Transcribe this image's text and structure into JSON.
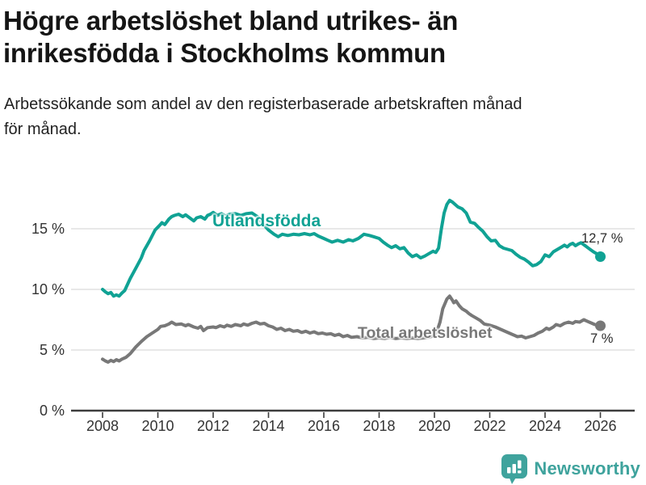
{
  "header": {
    "title_lines": [
      "Högre arbetslöshet bland utrikes- än",
      "inrikesfödda i Stockholms kommun"
    ],
    "subtitle_lines": [
      "Arbetssökande som andel av den registerbaserade arbetskraften månad",
      "för månad."
    ]
  },
  "chart_data": {
    "type": "line",
    "title": "Högre arbetslöshet bland utrikes- än inrikesfödda i Stockholms kommun",
    "subtitle": "Arbetssökande som andel av den registerbaserade arbetskraften månad för månad.",
    "xlabel": "",
    "ylabel": "",
    "grid": "horizontal",
    "grid_color": "#d9d9d9",
    "axis_color": "#3d3d3d",
    "tick_label_color": "#333333",
    "xlim": [
      2007.9,
      2026.6
    ],
    "ylim": [
      0,
      18
    ],
    "x_ticks": [
      "2008",
      "2010",
      "2012",
      "2014",
      "2016",
      "2018",
      "2020",
      "2022",
      "2024",
      "2026"
    ],
    "x_tick_values": [
      2008,
      2010,
      2012,
      2014,
      2016,
      2018,
      2020,
      2022,
      2024,
      2026
    ],
    "y_ticks": [
      {
        "label": "0 %",
        "value": 0
      },
      {
        "label": "5 %",
        "value": 5
      },
      {
        "label": "10 %",
        "value": 10
      },
      {
        "label": "15 %",
        "value": 15
      }
    ],
    "series": [
      {
        "id": "utlandsfodda",
        "name": "Utlandsfödda",
        "color": "#10a294",
        "end_label": "12,7 %",
        "end_value": 12.7,
        "points": [
          [
            2008.0,
            10.0
          ],
          [
            2008.1,
            9.8
          ],
          [
            2008.2,
            9.65
          ],
          [
            2008.3,
            9.75
          ],
          [
            2008.4,
            9.45
          ],
          [
            2008.5,
            9.55
          ],
          [
            2008.6,
            9.45
          ],
          [
            2008.7,
            9.7
          ],
          [
            2008.8,
            9.9
          ],
          [
            2009.0,
            10.9
          ],
          [
            2009.25,
            11.95
          ],
          [
            2009.4,
            12.6
          ],
          [
            2009.5,
            13.2
          ],
          [
            2009.7,
            14.0
          ],
          [
            2009.9,
            14.9
          ],
          [
            2010.05,
            15.25
          ],
          [
            2010.15,
            15.5
          ],
          [
            2010.25,
            15.35
          ],
          [
            2010.4,
            15.8
          ],
          [
            2010.5,
            16.0
          ],
          [
            2010.6,
            16.1
          ],
          [
            2010.75,
            16.2
          ],
          [
            2010.9,
            16.0
          ],
          [
            2011.0,
            16.15
          ],
          [
            2011.15,
            15.9
          ],
          [
            2011.3,
            15.65
          ],
          [
            2011.4,
            15.9
          ],
          [
            2011.55,
            16.0
          ],
          [
            2011.7,
            15.8
          ],
          [
            2011.8,
            16.1
          ],
          [
            2011.9,
            16.2
          ],
          [
            2012.0,
            16.35
          ],
          [
            2012.15,
            16.1
          ],
          [
            2012.3,
            16.25
          ],
          [
            2012.45,
            16.05
          ],
          [
            2012.6,
            16.2
          ],
          [
            2012.8,
            16.25
          ],
          [
            2013.0,
            16.1
          ],
          [
            2013.2,
            16.25
          ],
          [
            2013.4,
            16.3
          ],
          [
            2013.6,
            16.0
          ],
          [
            2013.8,
            15.4
          ],
          [
            2014.0,
            14.9
          ],
          [
            2014.2,
            14.55
          ],
          [
            2014.35,
            14.35
          ],
          [
            2014.5,
            14.55
          ],
          [
            2014.7,
            14.45
          ],
          [
            2014.9,
            14.55
          ],
          [
            2015.1,
            14.5
          ],
          [
            2015.3,
            14.6
          ],
          [
            2015.5,
            14.5
          ],
          [
            2015.65,
            14.6
          ],
          [
            2015.8,
            14.4
          ],
          [
            2016.0,
            14.2
          ],
          [
            2016.15,
            14.05
          ],
          [
            2016.3,
            13.9
          ],
          [
            2016.5,
            14.05
          ],
          [
            2016.7,
            13.9
          ],
          [
            2016.9,
            14.1
          ],
          [
            2017.05,
            14.0
          ],
          [
            2017.25,
            14.2
          ],
          [
            2017.45,
            14.55
          ],
          [
            2017.65,
            14.45
          ],
          [
            2017.8,
            14.35
          ],
          [
            2018.0,
            14.2
          ],
          [
            2018.15,
            13.9
          ],
          [
            2018.3,
            13.65
          ],
          [
            2018.45,
            13.45
          ],
          [
            2018.6,
            13.6
          ],
          [
            2018.75,
            13.35
          ],
          [
            2018.9,
            13.45
          ],
          [
            2019.05,
            13.0
          ],
          [
            2019.2,
            12.7
          ],
          [
            2019.35,
            12.85
          ],
          [
            2019.5,
            12.6
          ],
          [
            2019.65,
            12.75
          ],
          [
            2019.8,
            12.95
          ],
          [
            2019.95,
            13.15
          ],
          [
            2020.05,
            13.05
          ],
          [
            2020.15,
            13.4
          ],
          [
            2020.25,
            15.0
          ],
          [
            2020.35,
            16.3
          ],
          [
            2020.45,
            17.0
          ],
          [
            2020.55,
            17.35
          ],
          [
            2020.65,
            17.2
          ],
          [
            2020.75,
            17.0
          ],
          [
            2020.85,
            16.8
          ],
          [
            2021.0,
            16.65
          ],
          [
            2021.15,
            16.3
          ],
          [
            2021.3,
            15.55
          ],
          [
            2021.45,
            15.45
          ],
          [
            2021.6,
            15.1
          ],
          [
            2021.75,
            14.8
          ],
          [
            2021.9,
            14.35
          ],
          [
            2022.05,
            14.0
          ],
          [
            2022.2,
            14.05
          ],
          [
            2022.35,
            13.6
          ],
          [
            2022.5,
            13.4
          ],
          [
            2022.65,
            13.3
          ],
          [
            2022.8,
            13.2
          ],
          [
            2022.95,
            12.9
          ],
          [
            2023.1,
            12.65
          ],
          [
            2023.25,
            12.5
          ],
          [
            2023.4,
            12.25
          ],
          [
            2023.55,
            11.95
          ],
          [
            2023.7,
            12.05
          ],
          [
            2023.85,
            12.3
          ],
          [
            2024.0,
            12.85
          ],
          [
            2024.15,
            12.7
          ],
          [
            2024.3,
            13.1
          ],
          [
            2024.45,
            13.3
          ],
          [
            2024.6,
            13.5
          ],
          [
            2024.7,
            13.65
          ],
          [
            2024.8,
            13.5
          ],
          [
            2024.9,
            13.7
          ],
          [
            2025.0,
            13.8
          ],
          [
            2025.1,
            13.6
          ],
          [
            2025.2,
            13.75
          ],
          [
            2025.3,
            13.85
          ],
          [
            2025.45,
            13.6
          ],
          [
            2025.6,
            13.35
          ],
          [
            2025.75,
            13.1
          ],
          [
            2025.9,
            12.9
          ],
          [
            2026.0,
            12.7
          ]
        ]
      },
      {
        "id": "total",
        "name": "Total arbetslöshet",
        "color": "#787878",
        "end_label": "7 %",
        "end_value": 7.0,
        "points": [
          [
            2008.0,
            4.25
          ],
          [
            2008.1,
            4.1
          ],
          [
            2008.2,
            4.0
          ],
          [
            2008.3,
            4.15
          ],
          [
            2008.4,
            4.05
          ],
          [
            2008.5,
            4.2
          ],
          [
            2008.6,
            4.1
          ],
          [
            2008.7,
            4.25
          ],
          [
            2008.85,
            4.4
          ],
          [
            2009.0,
            4.7
          ],
          [
            2009.2,
            5.25
          ],
          [
            2009.4,
            5.7
          ],
          [
            2009.6,
            6.1
          ],
          [
            2009.8,
            6.4
          ],
          [
            2010.0,
            6.7
          ],
          [
            2010.1,
            6.95
          ],
          [
            2010.25,
            7.0
          ],
          [
            2010.4,
            7.15
          ],
          [
            2010.5,
            7.3
          ],
          [
            2010.65,
            7.1
          ],
          [
            2010.85,
            7.15
          ],
          [
            2011.0,
            7.0
          ],
          [
            2011.1,
            7.1
          ],
          [
            2011.3,
            6.9
          ],
          [
            2011.45,
            6.8
          ],
          [
            2011.55,
            6.95
          ],
          [
            2011.65,
            6.6
          ],
          [
            2011.8,
            6.85
          ],
          [
            2012.0,
            6.9
          ],
          [
            2012.1,
            6.85
          ],
          [
            2012.25,
            7.0
          ],
          [
            2012.4,
            6.9
          ],
          [
            2012.5,
            7.05
          ],
          [
            2012.65,
            6.95
          ],
          [
            2012.8,
            7.1
          ],
          [
            2013.0,
            7.0
          ],
          [
            2013.1,
            7.15
          ],
          [
            2013.25,
            7.05
          ],
          [
            2013.4,
            7.2
          ],
          [
            2013.55,
            7.3
          ],
          [
            2013.7,
            7.15
          ],
          [
            2013.85,
            7.2
          ],
          [
            2014.0,
            7.0
          ],
          [
            2014.15,
            6.9
          ],
          [
            2014.3,
            6.7
          ],
          [
            2014.45,
            6.8
          ],
          [
            2014.6,
            6.6
          ],
          [
            2014.75,
            6.7
          ],
          [
            2014.9,
            6.55
          ],
          [
            2015.05,
            6.6
          ],
          [
            2015.2,
            6.45
          ],
          [
            2015.35,
            6.55
          ],
          [
            2015.5,
            6.4
          ],
          [
            2015.65,
            6.5
          ],
          [
            2015.8,
            6.35
          ],
          [
            2015.95,
            6.4
          ],
          [
            2016.1,
            6.3
          ],
          [
            2016.25,
            6.35
          ],
          [
            2016.4,
            6.2
          ],
          [
            2016.55,
            6.3
          ],
          [
            2016.7,
            6.1
          ],
          [
            2016.85,
            6.2
          ],
          [
            2017.0,
            6.05
          ],
          [
            2017.2,
            6.1
          ],
          [
            2017.4,
            6.0
          ],
          [
            2017.6,
            6.05
          ],
          [
            2017.8,
            5.95
          ],
          [
            2018.0,
            6.0
          ],
          [
            2018.2,
            5.95
          ],
          [
            2018.4,
            6.05
          ],
          [
            2018.6,
            5.95
          ],
          [
            2018.8,
            6.0
          ],
          [
            2019.0,
            5.95
          ],
          [
            2019.2,
            6.0
          ],
          [
            2019.4,
            5.95
          ],
          [
            2019.6,
            6.0
          ],
          [
            2019.8,
            6.05
          ],
          [
            2020.0,
            6.2
          ],
          [
            2020.1,
            6.6
          ],
          [
            2020.2,
            7.3
          ],
          [
            2020.3,
            8.4
          ],
          [
            2020.45,
            9.2
          ],
          [
            2020.55,
            9.45
          ],
          [
            2020.65,
            9.1
          ],
          [
            2020.7,
            8.9
          ],
          [
            2020.78,
            9.05
          ],
          [
            2020.9,
            8.65
          ],
          [
            2021.0,
            8.4
          ],
          [
            2021.15,
            8.2
          ],
          [
            2021.25,
            8.0
          ],
          [
            2021.35,
            7.85
          ],
          [
            2021.5,
            7.65
          ],
          [
            2021.65,
            7.45
          ],
          [
            2021.8,
            7.15
          ],
          [
            2022.0,
            7.05
          ],
          [
            2022.2,
            6.9
          ],
          [
            2022.4,
            6.7
          ],
          [
            2022.6,
            6.5
          ],
          [
            2022.8,
            6.3
          ],
          [
            2023.0,
            6.1
          ],
          [
            2023.15,
            6.15
          ],
          [
            2023.3,
            6.0
          ],
          [
            2023.45,
            6.1
          ],
          [
            2023.6,
            6.2
          ],
          [
            2023.75,
            6.4
          ],
          [
            2023.9,
            6.55
          ],
          [
            2024.05,
            6.8
          ],
          [
            2024.15,
            6.7
          ],
          [
            2024.3,
            6.9
          ],
          [
            2024.4,
            7.1
          ],
          [
            2024.55,
            7.0
          ],
          [
            2024.7,
            7.2
          ],
          [
            2024.85,
            7.3
          ],
          [
            2025.0,
            7.2
          ],
          [
            2025.1,
            7.35
          ],
          [
            2025.25,
            7.3
          ],
          [
            2025.4,
            7.5
          ],
          [
            2025.55,
            7.35
          ],
          [
            2025.7,
            7.2
          ],
          [
            2025.8,
            7.1
          ],
          [
            2025.95,
            7.0
          ],
          [
            2026.0,
            7.0
          ]
        ]
      }
    ]
  },
  "footer": {
    "brand": "Newsworthy",
    "brand_color": "#3fa39d",
    "logo_icon": "bar-chart-speech-bubble"
  }
}
